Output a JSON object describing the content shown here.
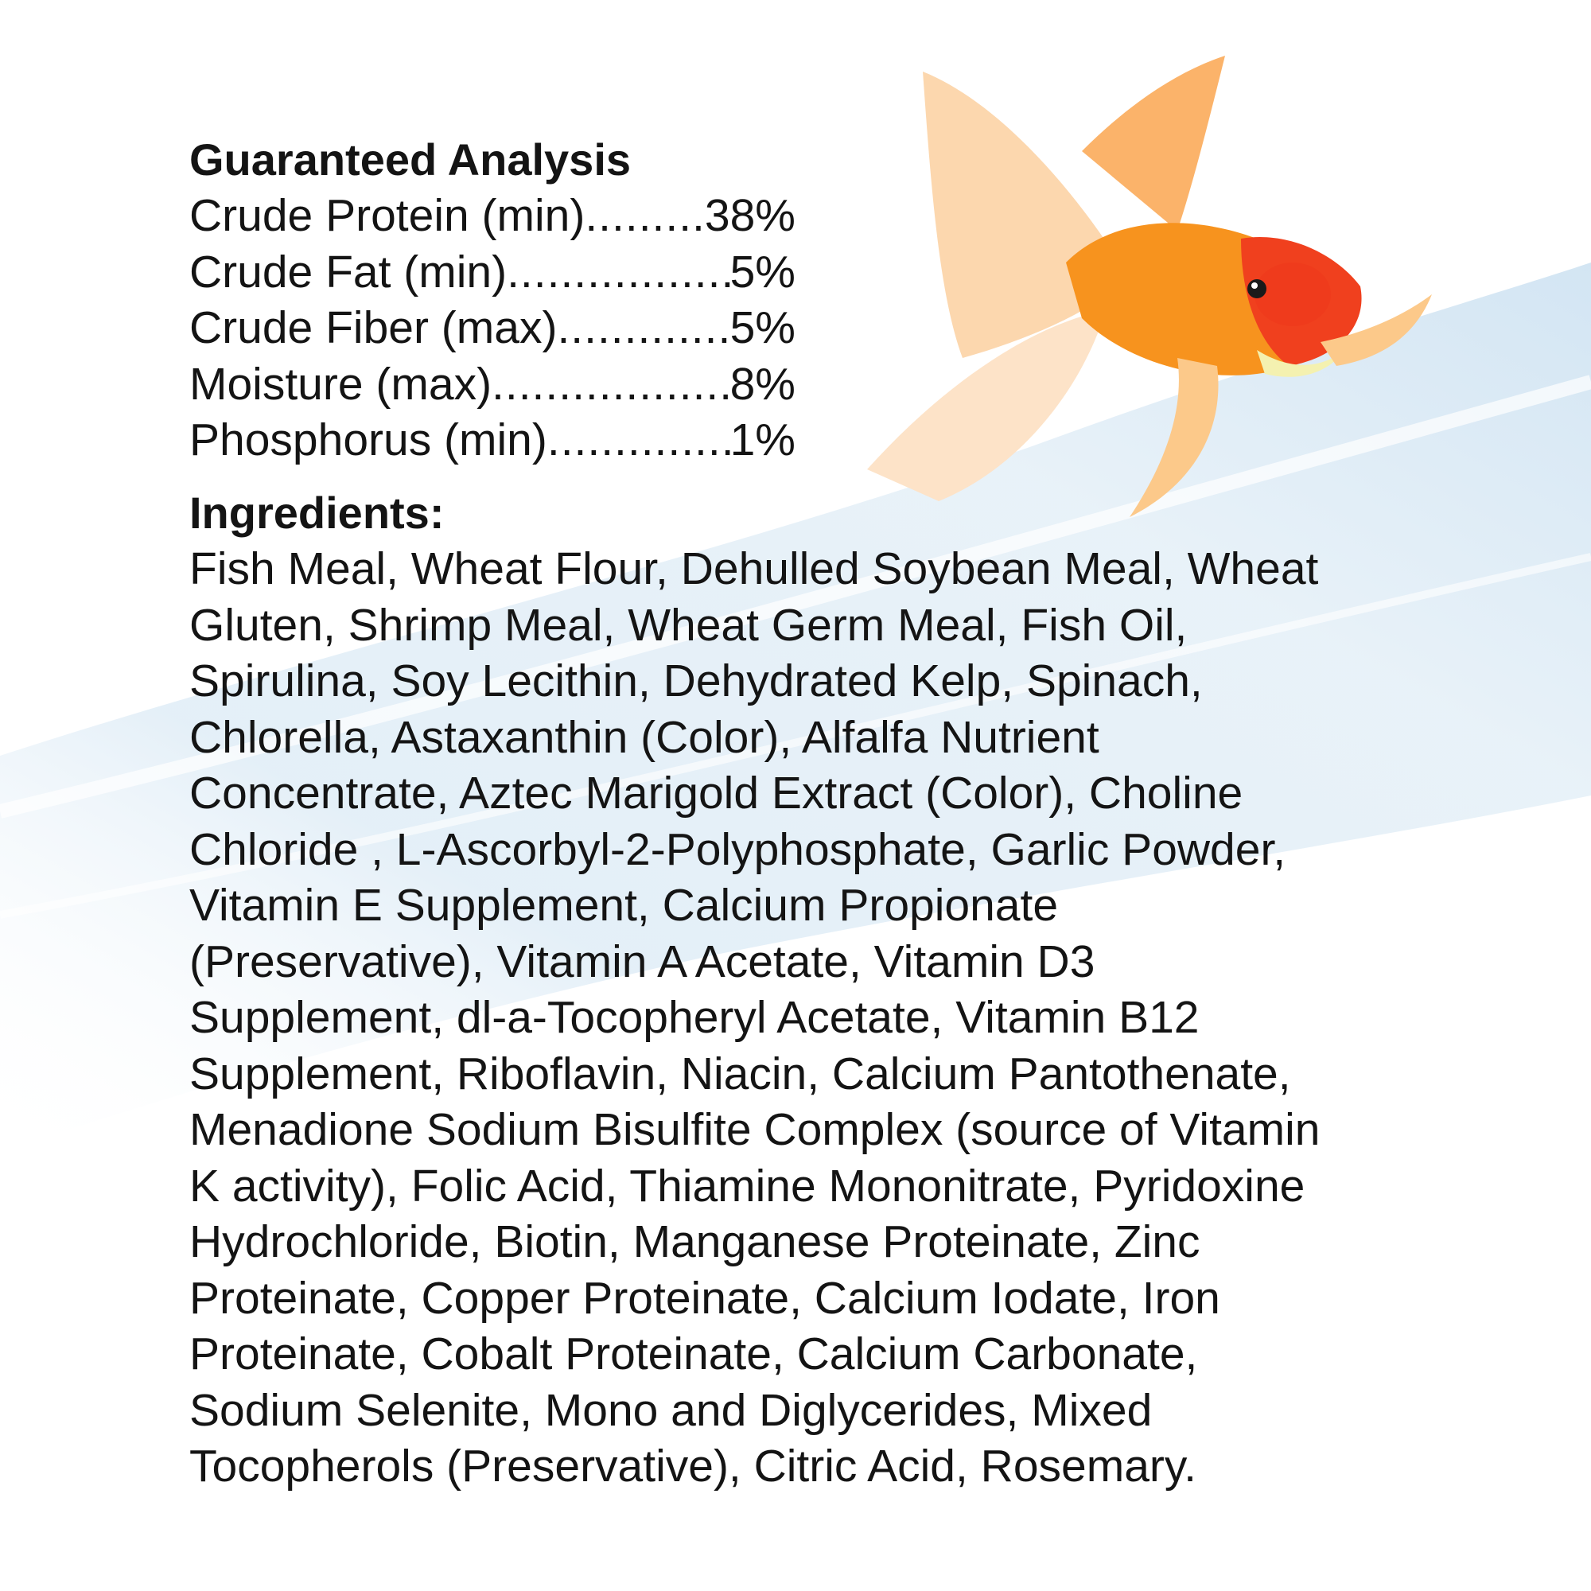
{
  "analysis": {
    "heading": "Guaranteed Analysis",
    "rows": [
      {
        "label": "Crude Protein (min) ",
        "value": " 38%"
      },
      {
        "label": "Crude Fat (min)",
        "value": "5%"
      },
      {
        "label": "Crude Fiber (max) ",
        "value": "5%"
      },
      {
        "label": "Moisture (max) ",
        "value": " 8%"
      },
      {
        "label": "Phosphorus (min)",
        "value": " 1%"
      }
    ]
  },
  "ingredients": {
    "heading": "Ingredients:",
    "lines": [
      "Fish Meal, Wheat Flour, Dehulled Soybean Meal, Wheat",
      "Gluten, Shrimp Meal, Wheat Germ Meal, Fish Oil,",
      "Spirulina, Soy Lecithin, Dehydrated Kelp, Spinach,",
      "Chlorella, Astaxanthin (Color), Alfalfa Nutrient",
      "Concentrate, Aztec Marigold Extract (Color), Choline",
      "Chloride , L-Ascorbyl-2-Polyphosphate, Garlic Powder,",
      "Vitamin E Supplement, Calcium Propionate",
      "(Preservative), Vitamin A Acetate, Vitamin D3",
      "Supplement, dl-a-Tocopheryl Acetate, Vitamin B12",
      "Supplement, Riboflavin, Niacin, Calcium Pantothenate,",
      "Menadione Sodium Bisulfite Complex (source of Vitamin",
      "K activity), Folic Acid, Thiamine Mononitrate, Pyridoxine",
      "Hydrochloride, Biotin, Manganese Proteinate, Zinc",
      "Proteinate, Copper Proteinate, Calcium Iodate, Iron",
      "Proteinate, Cobalt Proteinate, Calcium Carbonate,",
      "Sodium Selenite, Mono and Diglycerides, Mixed",
      "Tocopherols (Preservative), Citric Acid, Rosemary."
    ]
  },
  "colors": {
    "water": "#cfe3f2",
    "fish_orange": "#f7931e",
    "fish_red": "#f0401e",
    "text": "#141414"
  },
  "images": [
    "goldfish",
    "water-splash"
  ]
}
